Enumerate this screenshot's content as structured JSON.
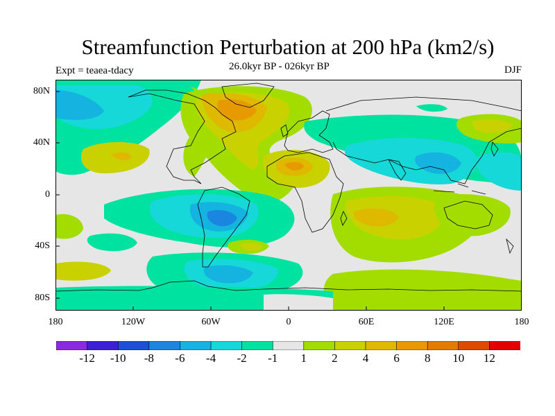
{
  "header": {
    "title": "Streamfunction Perturbation at 200 hPa (km2/s)",
    "subtitle": "26.0kyr BP - 026kyr BP",
    "left_label": "Expt = teaea-tdacy",
    "right_label": "DJF"
  },
  "map": {
    "lat_ticks": [
      "80N",
      "40N",
      "0",
      "40S",
      "80S"
    ],
    "lon_ticks": [
      "180",
      "120W",
      "60W",
      "0",
      "60E",
      "120E",
      "180"
    ],
    "background_color": "#e6e6e6",
    "coastline_color": "#000000"
  },
  "colorbar": {
    "colors": [
      "#8a2be2",
      "#3c1fd6",
      "#1f4fd6",
      "#1a86e0",
      "#14b3e0",
      "#16d8d8",
      "#00e2a0",
      "#e6e6e6",
      "#a3dd00",
      "#c9d200",
      "#dfb800",
      "#e79a00",
      "#e57a00",
      "#e04a00",
      "#e40000"
    ],
    "tick_labels": [
      "-12",
      "-10",
      "-8",
      "-6",
      "-4",
      "-2",
      "-1",
      "1",
      "2",
      "4",
      "6",
      "8",
      "10",
      "12"
    ]
  }
}
